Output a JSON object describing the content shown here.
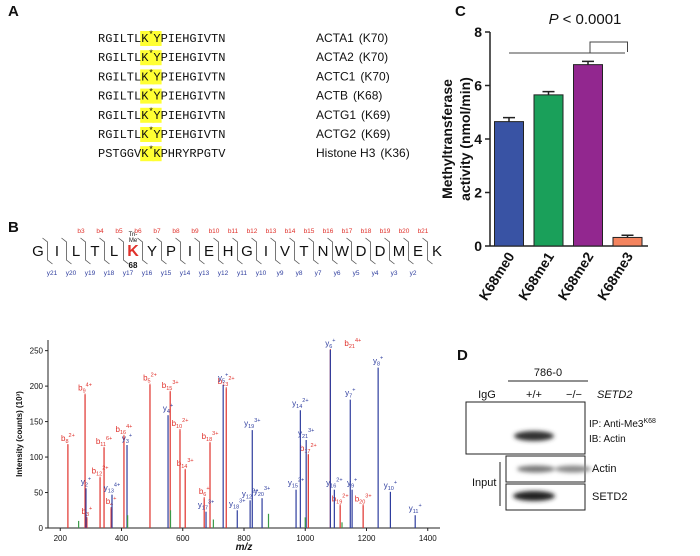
{
  "panel_a": {
    "label": "A",
    "rows": [
      {
        "sequence": [
          "RGILTL",
          "K",
          "*",
          "Y",
          "PIEHGIVTN"
        ],
        "protein": "ACTA1",
        "site": "(K70)"
      },
      {
        "sequence": [
          "RGILTL",
          "K",
          "*",
          "Y",
          "PIEHGIVTN"
        ],
        "protein": "ACTA2",
        "site": "(K70)"
      },
      {
        "sequence": [
          "RGILTL",
          "K",
          "*",
          "Y",
          "PIEHGIVTN"
        ],
        "protein": "ACTC1",
        "site": "(K70)"
      },
      {
        "sequence": [
          "RGILTL",
          "K",
          "*",
          "Y",
          "PIEHGIVTN"
        ],
        "protein": "ACTB",
        "site": "(K68)"
      },
      {
        "sequence": [
          "RGILTL",
          "K",
          "*",
          "Y",
          "PIEHGIVTN"
        ],
        "protein": "ACTG1",
        "site": "(K69)"
      },
      {
        "sequence": [
          "RGILTL",
          "K",
          "*",
          "Y",
          "PIEHGIVTN"
        ],
        "protein": "ACTG2",
        "site": "(K69)"
      },
      {
        "sequence": [
          "PSTGGV",
          "K",
          "*",
          "K",
          "PHRYRPGTV"
        ],
        "protein": "Histone H3",
        "site": "(K36)"
      }
    ]
  },
  "panel_b": {
    "label": "B",
    "peptide": {
      "residues": [
        "G",
        "I",
        "L",
        "T",
        "L",
        {
          "letter": "K",
          "modification": [
            "Tri-",
            "Me"
          ],
          "number": 68
        },
        "Y",
        "P",
        "I",
        "E",
        "H",
        "G",
        "I",
        "V",
        "T",
        "N",
        "W",
        "D",
        "D",
        "M",
        "E",
        "K"
      ],
      "b_ions": [
        "b3",
        "b4",
        "b5",
        "b6",
        "b7",
        "b8",
        "b9",
        "b10",
        "b11",
        "b12",
        "b13",
        "b14",
        "b15",
        "b16",
        "b17",
        "b18",
        "b19",
        "b20",
        "b21"
      ],
      "y_ions": [
        "y21",
        "y20",
        "y19",
        "y18",
        "y17",
        "y16",
        "y15",
        "y14",
        "y13",
        "y12",
        "y11",
        "y10",
        "y9",
        "y8",
        "y7",
        "y6",
        "y5",
        "y4",
        "y3",
        "y2"
      ]
    }
  },
  "chart_data": [
    {
      "type": "stem",
      "ylabel": "Intensity (counts) (10³)",
      "xlabel": "m/z",
      "xlim": [
        160,
        1440
      ],
      "xticks": [
        200,
        400,
        600,
        800,
        1000,
        1200,
        1400
      ],
      "ylim": [
        0,
        265
      ],
      "yticks": [
        0,
        50,
        100,
        150,
        200,
        250
      ],
      "series": [
        {
          "color": "#e0312b",
          "x": [
            225,
            281,
            287,
            366,
            330,
            343,
            408,
            493,
            559,
            591,
            608,
            689,
            670,
            742,
            1082,
            1010,
            1114,
            1189
          ],
          "values": [
            117,
            188,
            14,
            28,
            71,
            113,
            130,
            202,
            192,
            138,
            82,
            120,
            42,
            197,
            251,
            103,
            32,
            32
          ],
          "labels": [
            {
              "ion": "b",
              "index": 8,
              "charge": "2+"
            },
            {
              "ion": "b",
              "index": 9,
              "charge": "4+"
            },
            {
              "ion": "b",
              "index": 3,
              "charge": "+"
            },
            {
              "ion": "b",
              "index": 4,
              "charge": "+"
            },
            {
              "ion": "b",
              "index": 12,
              "charge": "2+"
            },
            {
              "ion": "b",
              "index": 11,
              "charge": "6+"
            },
            {
              "ion": "b",
              "index": 16,
              "charge": "4+"
            },
            {
              "ion": "b",
              "index": 5,
              "charge": "2+"
            },
            {
              "ion": "b",
              "index": 15,
              "charge": "3+"
            },
            {
              "ion": "b",
              "index": 10,
              "charge": "2+"
            },
            {
              "ion": "b",
              "index": 14,
              "charge": "3+"
            },
            {
              "ion": "b",
              "index": 18,
              "charge": "3+"
            },
            {
              "ion": "b",
              "index": 6,
              "charge": "+"
            },
            {
              "ion": "b",
              "index": 13,
              "charge": "2+"
            },
            {
              "ion": "b",
              "index": 21,
              "charge": "4+"
            },
            {
              "ion": "b",
              "index": 17,
              "charge": "2+"
            },
            {
              "ion": "b",
              "index": 19,
              "charge": "2+"
            },
            {
              "ion": "b",
              "index": 20,
              "charge": "3+"
            }
          ]
        },
        {
          "color": "#2e3d9e",
          "x": [
            284,
            369,
            418,
            552,
            676,
            732,
            778,
            859,
            820,
            827,
            984,
            1003,
            970,
            1082,
            1095,
            1147,
            1238,
            1153,
            1278,
            1359
          ],
          "values": [
            56,
            47,
            117,
            159,
            23,
            202,
            25,
            42,
            39,
            138,
            166,
            124,
            54,
            251,
            54,
            181,
            226,
            54,
            51,
            18
          ],
          "labels": [
            {
              "ion": "y",
              "index": 2,
              "charge": "+"
            },
            {
              "ion": "y",
              "index": 13,
              "charge": "4+"
            },
            {
              "ion": "y",
              "index": 3,
              "charge": "+"
            },
            {
              "ion": "y",
              "index": 4,
              "charge": "+"
            },
            {
              "ion": "y",
              "index": 17,
              "charge": "3+"
            },
            {
              "ion": "y",
              "index": 5,
              "charge": "+"
            },
            {
              "ion": "y",
              "index": 18,
              "charge": "3+"
            },
            {
              "ion": "y",
              "index": 20,
              "charge": "3+"
            },
            {
              "ion": "y",
              "index": 12,
              "charge": "2+"
            },
            {
              "ion": "y",
              "index": 19,
              "charge": "3+"
            },
            {
              "ion": "y",
              "index": 14,
              "charge": "2+"
            },
            {
              "ion": "y",
              "index": 21,
              "charge": "3+"
            },
            {
              "ion": "y",
              "index": 15,
              "charge": "2+"
            },
            {
              "ion": "y",
              "index": 6,
              "charge": "+"
            },
            {
              "ion": "y",
              "index": 16,
              "charge": "2+"
            },
            {
              "ion": "y",
              "index": 7,
              "charge": "+"
            },
            {
              "ion": "y",
              "index": 8,
              "charge": "+"
            },
            {
              "ion": "y",
              "index": 9,
              "charge": "+"
            },
            {
              "ion": "y",
              "index": 10,
              "charge": "+"
            },
            {
              "ion": "y",
              "index": 11,
              "charge": "+"
            }
          ]
        },
        {
          "color": "#3a9a47",
          "x": [
            260,
            420,
            560,
            700,
            880,
            1000,
            1120
          ],
          "values": [
            10,
            18,
            25,
            12,
            20,
            15,
            8
          ]
        }
      ]
    },
    {
      "type": "bar",
      "panel": "C",
      "categories": [
        "K68me0",
        "K68me1",
        "K68me2",
        "K68me3"
      ],
      "values": [
        4.65,
        5.65,
        6.78,
        0.32
      ],
      "errors": [
        0.15,
        0.12,
        0.12,
        0.08
      ],
      "colors": [
        "#3953a4",
        "#1aa05a",
        "#92278f",
        "#f4845f"
      ],
      "ylabel": [
        "Methyltransferase",
        "activity (nmol/min)"
      ],
      "ylim": [
        0,
        8
      ],
      "yticks": [
        0,
        2,
        4,
        6,
        8
      ],
      "annotation": {
        "italic": "P",
        "text": "< 0.0001"
      }
    }
  ],
  "panel_d": {
    "label": "D",
    "cell_line": "786-0",
    "gene": "SETD2",
    "lanes": [
      "IgG",
      "+/+",
      "−/−"
    ],
    "ip_label": {
      "text": "IP: Anti-Me3",
      "superscript": "K68"
    },
    "ib_label": "IB: Actin",
    "input_label": "Input",
    "input_rows": [
      "Actin",
      "SETD2"
    ]
  }
}
